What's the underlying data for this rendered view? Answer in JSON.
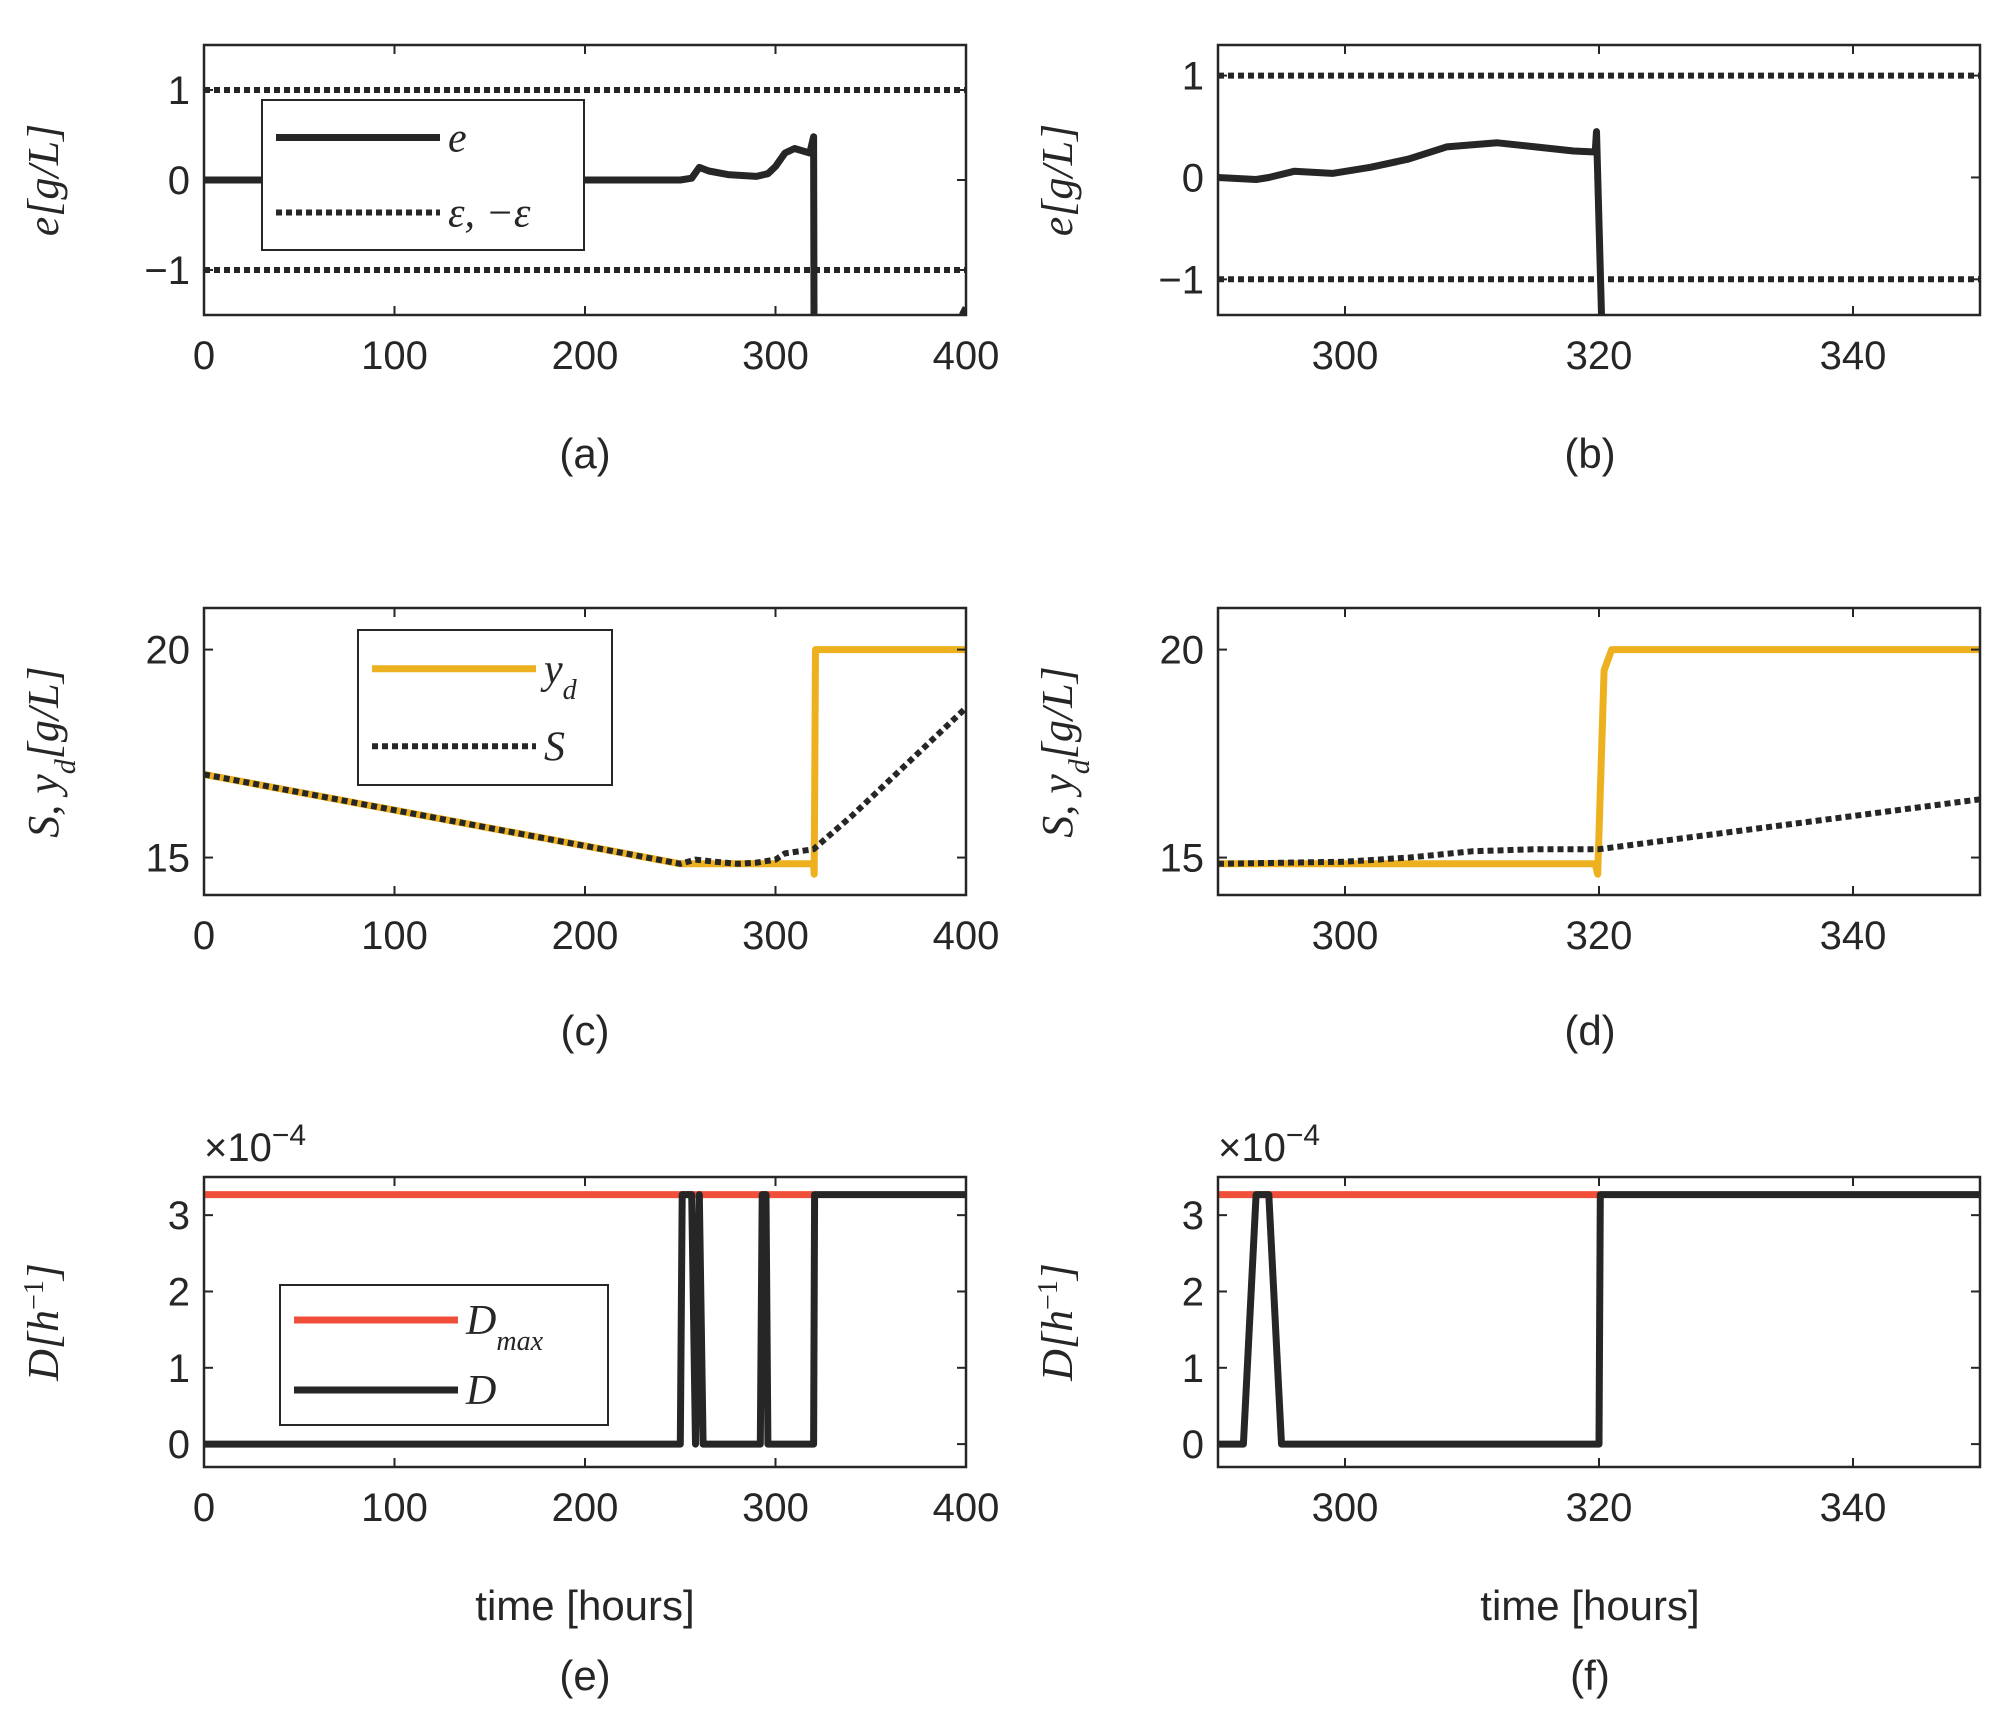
{
  "colors": {
    "black": "#262626",
    "yellow": "#edb120",
    "red": "#f0503a"
  },
  "labels": {
    "time_axis": "time [hours]",
    "exponent": "×10⁻⁴"
  },
  "chart_data": [
    {
      "id": "a",
      "type": "line",
      "panel_label": "(a)",
      "ylabel": "e[g/L]",
      "xlabel": "",
      "xlim": [
        0,
        400
      ],
      "ylim": [
        -1.5,
        1.5
      ],
      "xticks": [
        0,
        100,
        200,
        300,
        400
      ],
      "yticks": [
        -1,
        0,
        1
      ],
      "ytick_labels": [
        "−1",
        "0",
        "1"
      ],
      "legend": {
        "position": "upper-left",
        "entries": [
          "e",
          "ε, −ε"
        ]
      },
      "series": [
        {
          "name": "e",
          "style": "solid",
          "color": "#262626",
          "x": [
            0,
            250,
            256,
            260,
            265,
            275,
            290,
            296,
            300,
            305,
            310,
            318,
            320,
            320.2
          ],
          "y": [
            0,
            0,
            0.02,
            0.14,
            0.1,
            0.06,
            0.04,
            0.07,
            0.15,
            0.3,
            0.35,
            0.3,
            0.48,
            -1.5
          ]
        },
        {
          "name": "",
          "style": "solid",
          "color": "#262626",
          "x": [
            398,
            400
          ],
          "y": [
            -1.5,
            -1.42
          ]
        },
        {
          "name": "ε, −ε",
          "style": "dotted",
          "color": "#262626",
          "x": [
            0,
            400
          ],
          "y": [
            1,
            1
          ]
        },
        {
          "name": "",
          "style": "dotted",
          "color": "#262626",
          "x": [
            0,
            400
          ],
          "y": [
            -1,
            -1
          ]
        }
      ]
    },
    {
      "id": "b",
      "type": "line",
      "panel_label": "(b)",
      "ylabel": "e[g/L]",
      "xlabel": "",
      "xlim": [
        290,
        350
      ],
      "ylim": [
        -1.35,
        1.3
      ],
      "xticks": [
        300,
        320,
        340
      ],
      "yticks": [
        -1,
        0,
        1
      ],
      "ytick_labels": [
        "−1",
        "0",
        "1"
      ],
      "series": [
        {
          "name": "e",
          "style": "solid",
          "color": "#262626",
          "x": [
            290,
            293,
            294,
            296,
            299,
            302,
            305,
            308,
            312,
            315,
            318,
            319.7,
            319.8,
            320.2
          ],
          "y": [
            0,
            -0.02,
            0.0,
            0.06,
            0.04,
            0.1,
            0.18,
            0.3,
            0.34,
            0.3,
            0.26,
            0.25,
            0.45,
            -1.35
          ]
        },
        {
          "name": "",
          "style": "dotted",
          "color": "#262626",
          "x": [
            290,
            350
          ],
          "y": [
            1,
            1
          ]
        },
        {
          "name": "",
          "style": "dotted",
          "color": "#262626",
          "x": [
            290,
            350
          ],
          "y": [
            -1,
            -1
          ]
        }
      ]
    },
    {
      "id": "c",
      "type": "line",
      "panel_label": "(c)",
      "ylabel": "S, yd[g/L]",
      "xlabel": "",
      "xlim": [
        0,
        400
      ],
      "ylim": [
        14.1,
        21
      ],
      "xticks": [
        0,
        100,
        200,
        300,
        400
      ],
      "yticks": [
        15,
        20
      ],
      "ytick_labels": [
        "15",
        "20"
      ],
      "legend": {
        "position": "upper-left",
        "entries": [
          "yd",
          "S"
        ]
      },
      "series": [
        {
          "name": "yd",
          "style": "solid",
          "color": "#edb120",
          "x": [
            0,
            250,
            320,
            320.3,
            321,
            400
          ],
          "y": [
            17,
            14.85,
            14.85,
            14.6,
            20,
            20
          ]
        },
        {
          "name": "S",
          "style": "dotted",
          "color": "#262626",
          "x": [
            0,
            250,
            258,
            268,
            280,
            290,
            300,
            305,
            320,
            340,
            370,
            400
          ],
          "y": [
            17,
            14.85,
            14.95,
            14.9,
            14.85,
            14.88,
            14.95,
            15.1,
            15.2,
            16,
            17.3,
            18.6
          ]
        }
      ]
    },
    {
      "id": "d",
      "type": "line",
      "panel_label": "(d)",
      "ylabel": "S, yd[g/L]",
      "xlabel": "",
      "xlim": [
        290,
        350
      ],
      "ylim": [
        14.1,
        21
      ],
      "xticks": [
        300,
        320,
        340
      ],
      "yticks": [
        15,
        20
      ],
      "ytick_labels": [
        "15",
        "20"
      ],
      "series": [
        {
          "name": "yd",
          "style": "solid",
          "color": "#edb120",
          "x": [
            290,
            319.7,
            319.9,
            320.4,
            321,
            350
          ],
          "y": [
            14.85,
            14.85,
            14.6,
            19.5,
            20,
            20
          ]
        },
        {
          "name": "S",
          "style": "dotted",
          "color": "#262626",
          "x": [
            290,
            300,
            305,
            310,
            315,
            320,
            330,
            340,
            350
          ],
          "y": [
            14.85,
            14.9,
            15.0,
            15.15,
            15.2,
            15.2,
            15.6,
            16.0,
            16.4
          ]
        }
      ]
    },
    {
      "id": "e",
      "type": "line",
      "panel_label": "(e)",
      "ylabel": "D[h⁻¹]",
      "xlabel": "time [hours]",
      "exponent_label": "×10⁻⁴",
      "xlim": [
        0,
        400
      ],
      "ylim": [
        -0.3,
        3.5
      ],
      "xticks": [
        0,
        100,
        200,
        300,
        400
      ],
      "yticks": [
        0,
        1,
        2,
        3
      ],
      "ytick_labels": [
        "0",
        "1",
        "2",
        "3"
      ],
      "legend": {
        "position": "lower-left",
        "entries": [
          "Dmax",
          "D"
        ]
      },
      "series": [
        {
          "name": "Dmax",
          "style": "solid",
          "color": "#f0503a",
          "x": [
            0,
            320
          ],
          "y": [
            3.27,
            3.27
          ]
        },
        {
          "name": "D",
          "style": "solid",
          "color": "#262626",
          "x": [
            0,
            250,
            251,
            256,
            258,
            260,
            262,
            292,
            293,
            295,
            296,
            320,
            320.5,
            400
          ],
          "y": [
            0,
            0,
            3.27,
            3.27,
            0,
            3.27,
            0,
            0,
            3.27,
            3.27,
            0,
            0,
            3.27,
            3.27
          ]
        }
      ]
    },
    {
      "id": "f",
      "type": "line",
      "panel_label": "(f)",
      "ylabel": "D[h⁻¹]",
      "xlabel": "time [hours]",
      "exponent_label": "×10⁻⁴",
      "xlim": [
        290,
        350
      ],
      "ylim": [
        -0.3,
        3.5
      ],
      "xticks": [
        300,
        320,
        340
      ],
      "yticks": [
        0,
        1,
        2,
        3
      ],
      "ytick_labels": [
        "0",
        "1",
        "2",
        "3"
      ],
      "series": [
        {
          "name": "Dmax",
          "style": "solid",
          "color": "#f0503a",
          "x": [
            290,
            320
          ],
          "y": [
            3.27,
            3.27
          ]
        },
        {
          "name": "D",
          "style": "solid",
          "color": "#262626",
          "x": [
            290,
            292,
            293,
            294,
            295,
            320,
            320.1,
            350
          ],
          "y": [
            0,
            0,
            3.27,
            3.27,
            0,
            0,
            3.27,
            3.27
          ]
        }
      ]
    }
  ]
}
